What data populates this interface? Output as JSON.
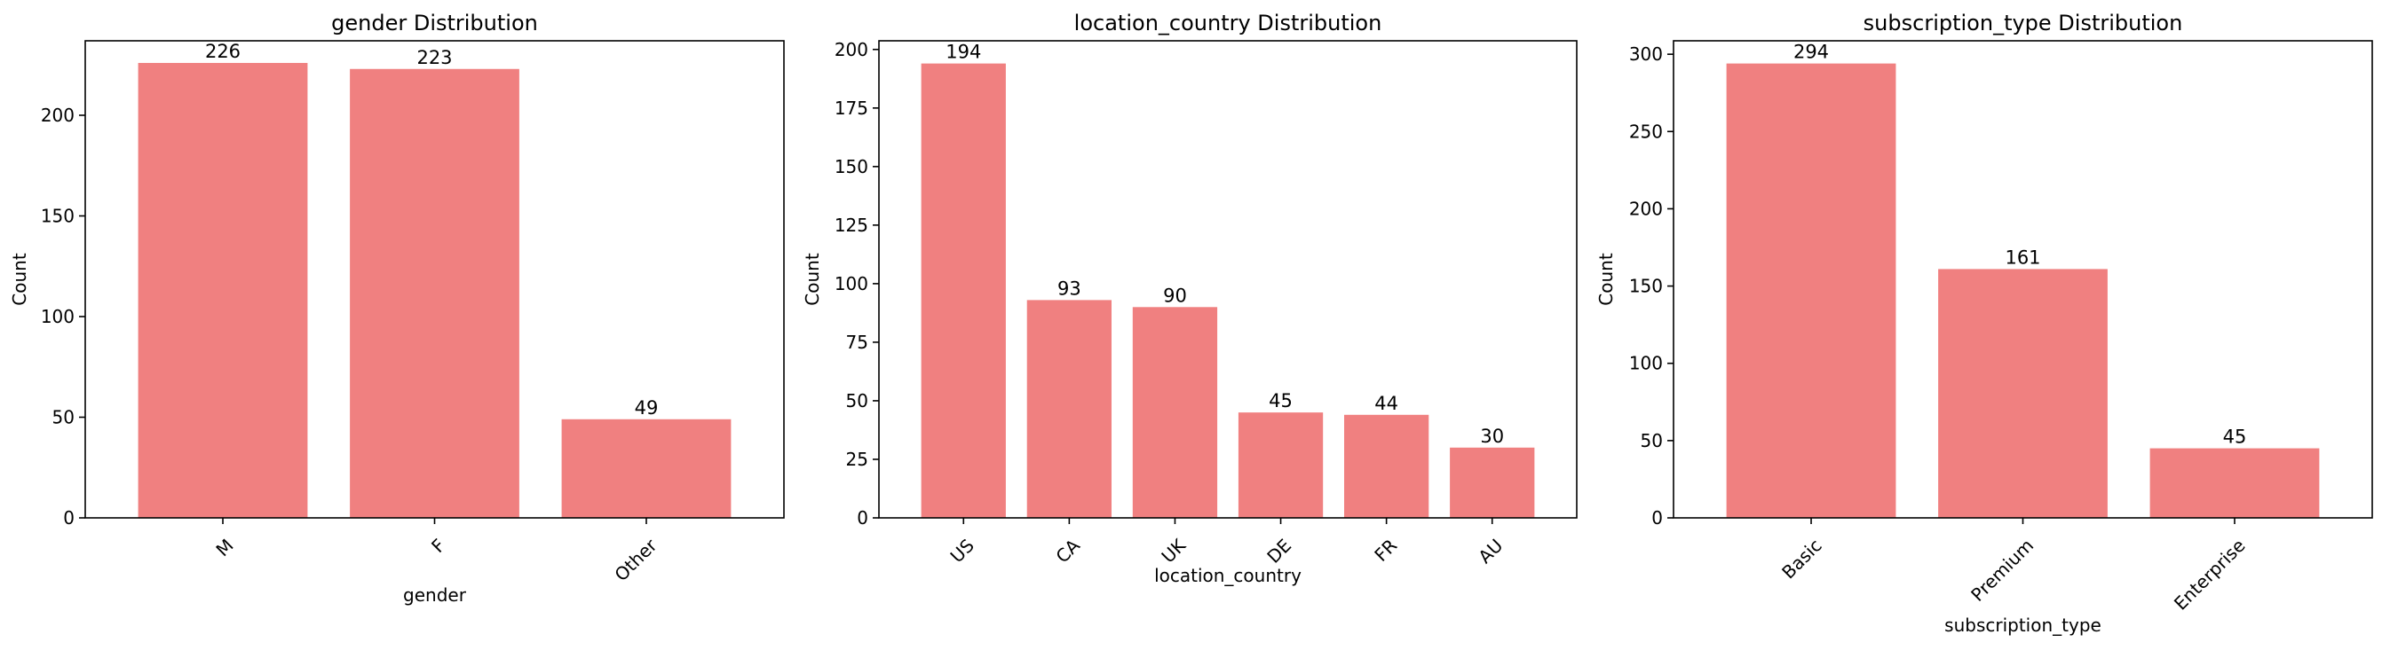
{
  "figure": {
    "bar_color": "#f08080",
    "axis_color": "#000000",
    "background": "#ffffff"
  },
  "chart_data": [
    {
      "type": "bar",
      "title": "gender Distribution",
      "xlabel": "gender",
      "ylabel": "Count",
      "categories": [
        "M",
        "F",
        "Other"
      ],
      "values": [
        226,
        223,
        49
      ],
      "ylim": [
        0,
        237
      ],
      "yticks": [
        0,
        50,
        100,
        150,
        200
      ],
      "grid": false
    },
    {
      "type": "bar",
      "title": "location_country Distribution",
      "xlabel": "location_country",
      "ylabel": "Count",
      "categories": [
        "US",
        "CA",
        "UK",
        "DE",
        "FR",
        "AU"
      ],
      "values": [
        194,
        93,
        90,
        45,
        44,
        30
      ],
      "ylim": [
        0,
        203.7
      ],
      "yticks": [
        0,
        25,
        50,
        75,
        100,
        125,
        150,
        175,
        200
      ],
      "grid": false
    },
    {
      "type": "bar",
      "title": "subscription_type Distribution",
      "xlabel": "subscription_type",
      "ylabel": "Count",
      "categories": [
        "Basic",
        "Premium",
        "Enterprise"
      ],
      "values": [
        294,
        161,
        45
      ],
      "ylim": [
        0,
        308.7
      ],
      "yticks": [
        0,
        50,
        100,
        150,
        200,
        250,
        300
      ],
      "grid": false
    }
  ]
}
